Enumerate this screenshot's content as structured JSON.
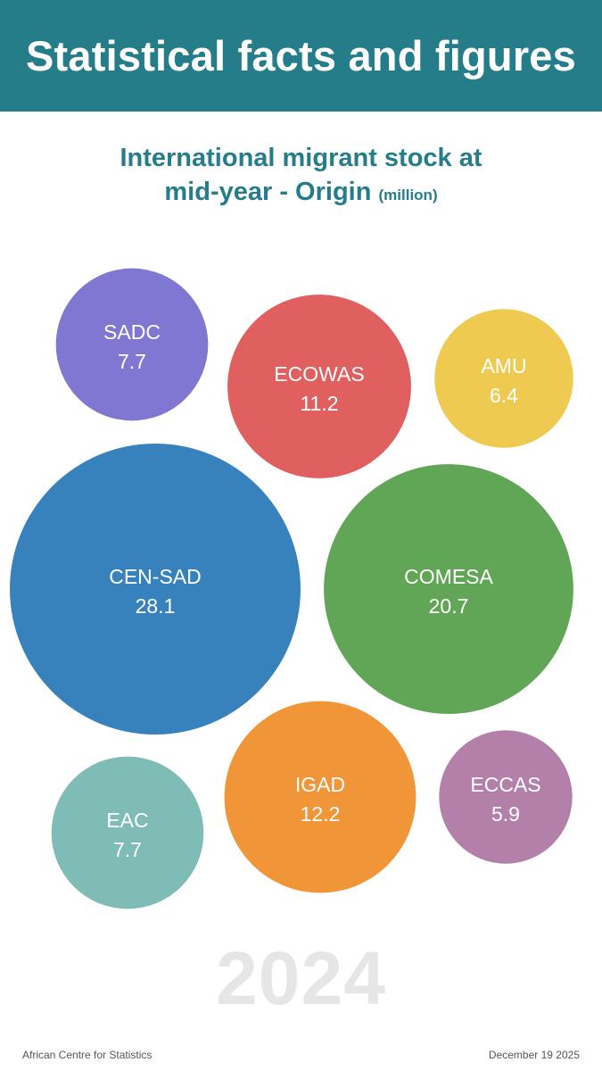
{
  "banner": {
    "title": "Statistical facts and figures"
  },
  "chart_data": {
    "type": "bubble",
    "title_main": "International migrant stock at mid-year - Origin",
    "title_unit": "(million)",
    "series": [
      {
        "name": "SADC",
        "value": 7.7,
        "color": "#7f77d1"
      },
      {
        "name": "ECOWAS",
        "value": 11.2,
        "color": "#e05f5f"
      },
      {
        "name": "AMU",
        "value": 6.4,
        "color": "#eecb50"
      },
      {
        "name": "CEN-SAD",
        "value": 28.1,
        "color": "#3782bd"
      },
      {
        "name": "COMESA",
        "value": 20.7,
        "color": "#61a656"
      },
      {
        "name": "EAC",
        "value": 7.7,
        "color": "#80bcb6"
      },
      {
        "name": "IGAD",
        "value": 12.2,
        "color": "#f19638"
      },
      {
        "name": "ECCAS",
        "value": 5.9,
        "color": "#b380aa"
      }
    ]
  },
  "year": "2024",
  "footer": {
    "source": "African Centre for Statistics",
    "date": "December 19 2025"
  }
}
